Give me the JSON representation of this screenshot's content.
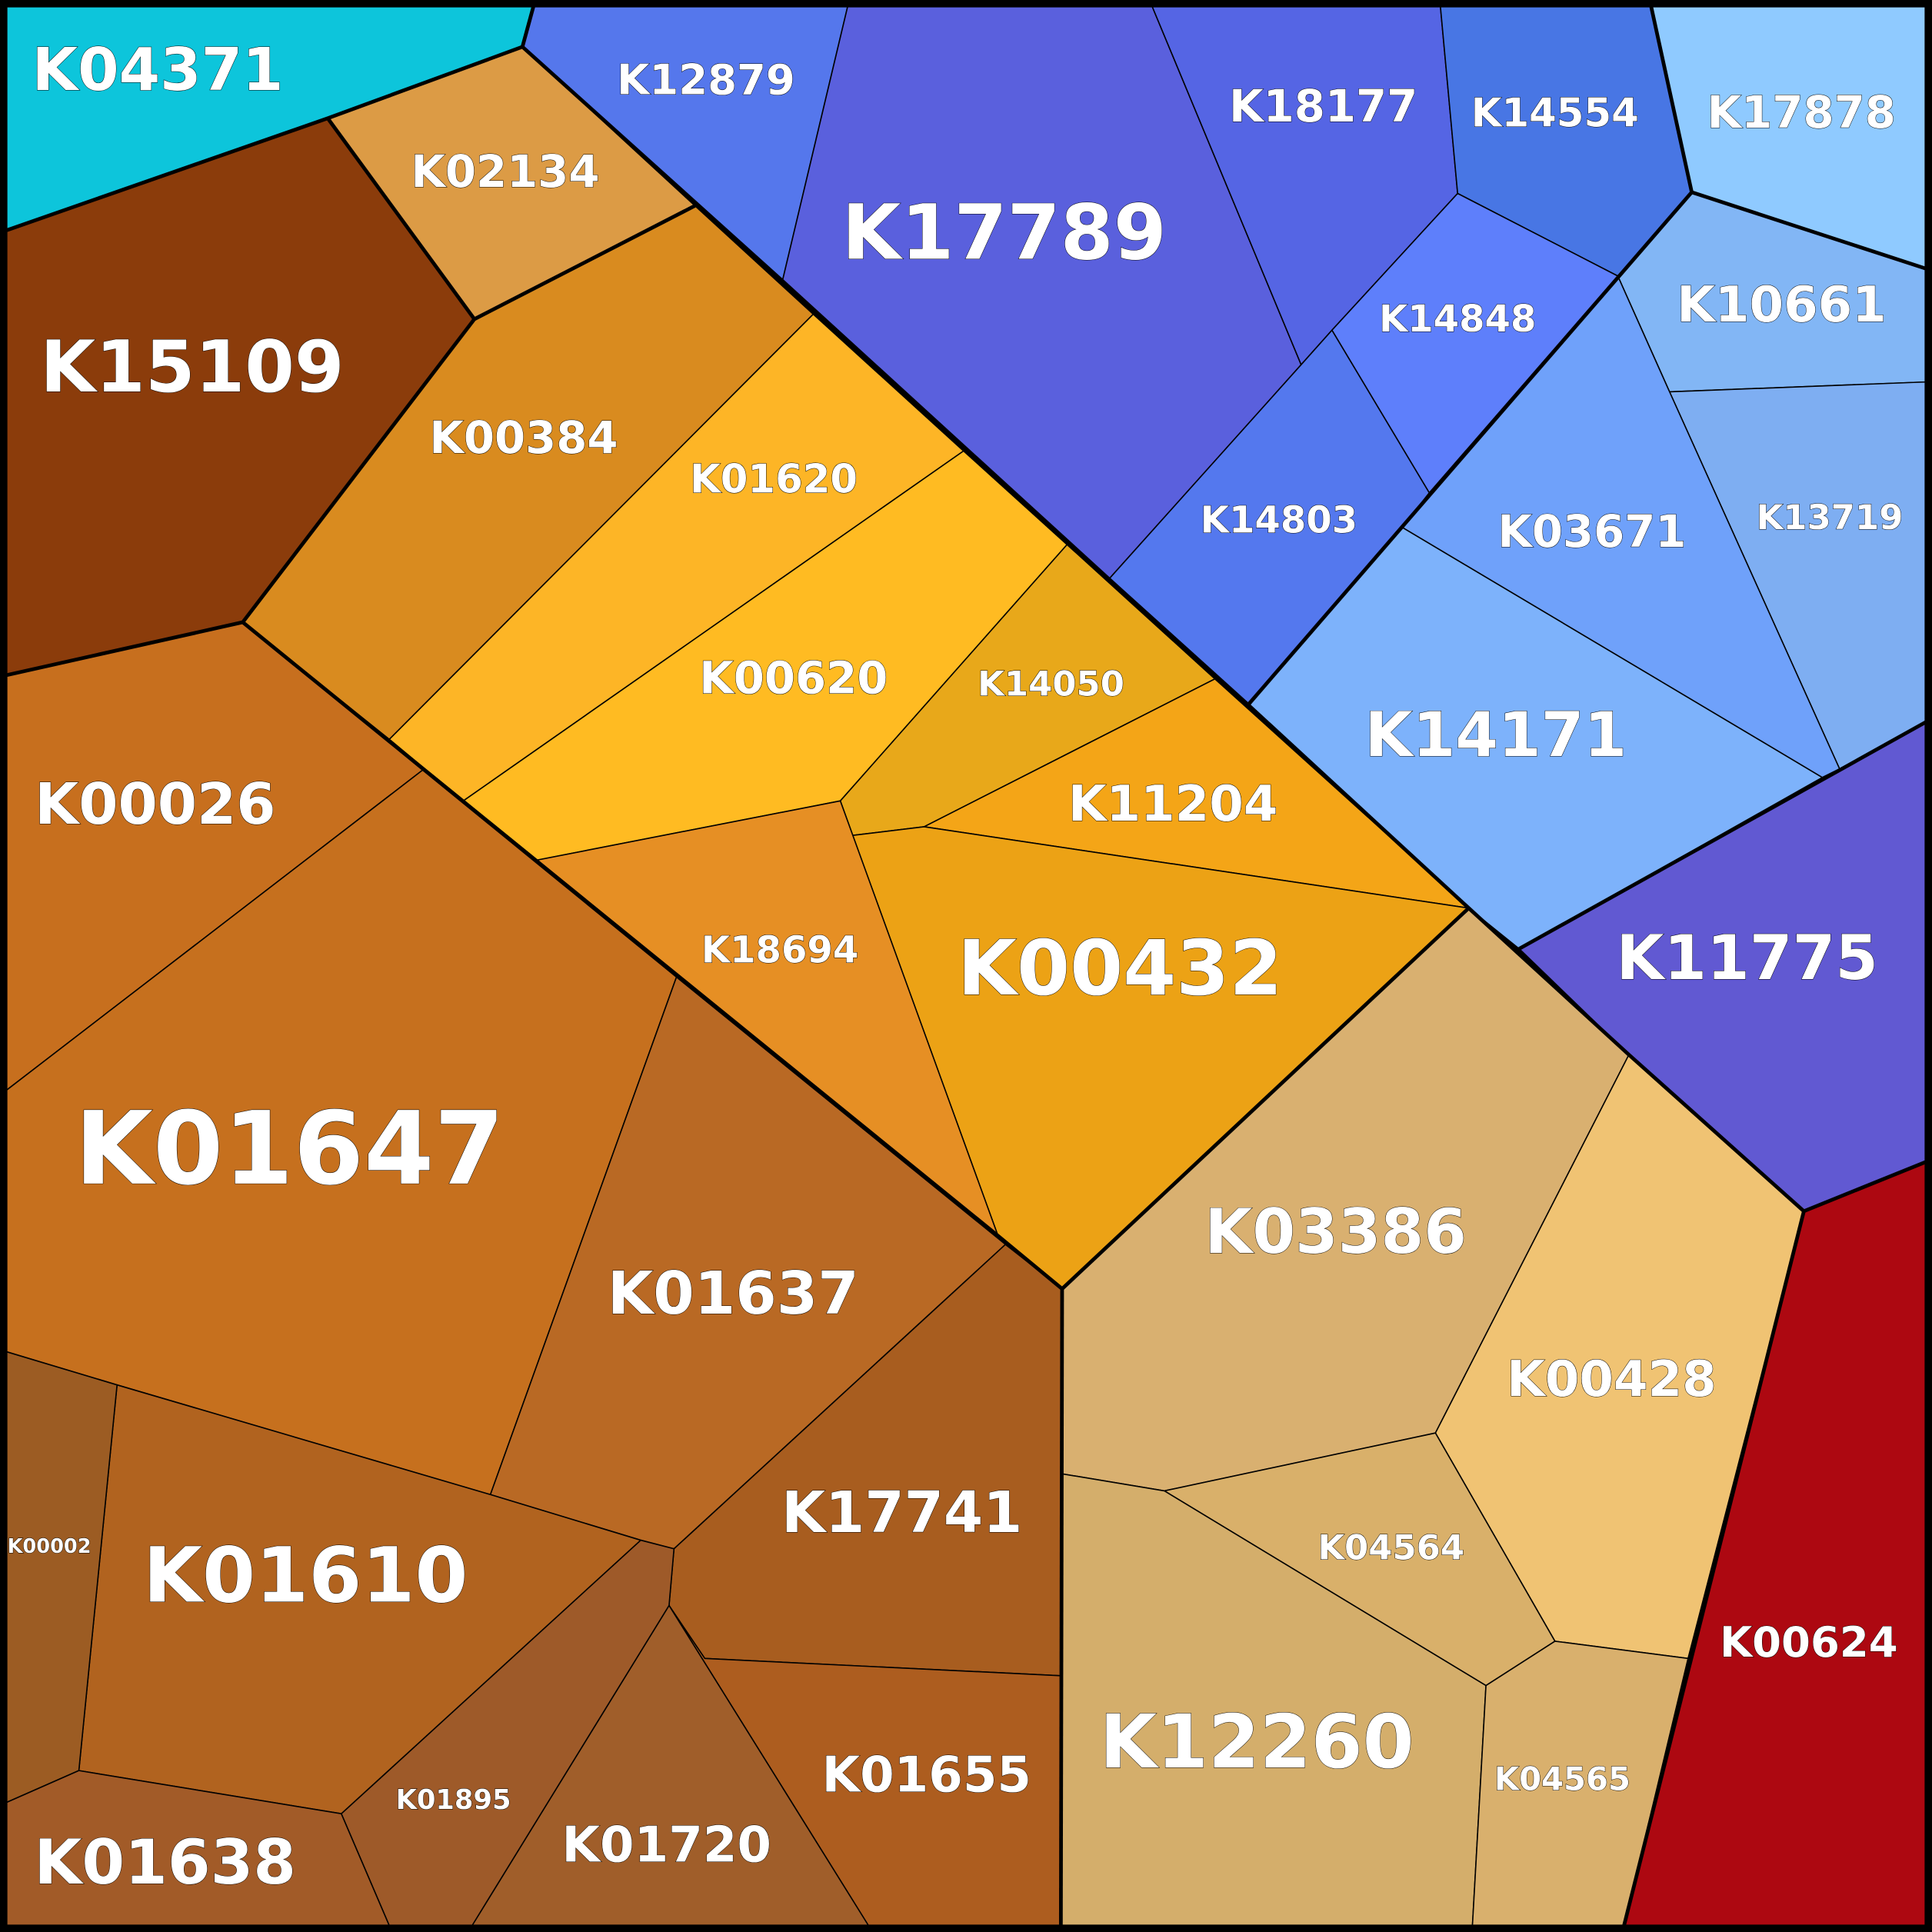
{
  "cells": [
    {
      "label": "K04371"
    },
    {
      "label": "K02134"
    },
    {
      "label": "K15109"
    },
    {
      "label": "K00384"
    },
    {
      "label": "K01620"
    },
    {
      "label": "K00620"
    },
    {
      "label": "K14050"
    },
    {
      "label": "K11204"
    },
    {
      "label": "K00432"
    },
    {
      "label": "K18694"
    },
    {
      "label": "K00026"
    },
    {
      "label": "K01647"
    },
    {
      "label": "K01637"
    },
    {
      "label": "K17741"
    },
    {
      "label": "K01655"
    },
    {
      "label": "K01720"
    },
    {
      "label": "K01895"
    },
    {
      "label": "K01610"
    },
    {
      "label": "K00002"
    },
    {
      "label": "K01638"
    },
    {
      "label": "K12879"
    },
    {
      "label": "K17789"
    },
    {
      "label": "K18177"
    },
    {
      "label": "K14554"
    },
    {
      "label": "K17878"
    },
    {
      "label": "K14848"
    },
    {
      "label": "K14803"
    },
    {
      "label": "K10661"
    },
    {
      "label": "K13719"
    },
    {
      "label": "K03671"
    },
    {
      "label": "K14171"
    },
    {
      "label": "K11775"
    },
    {
      "label": "K03386"
    },
    {
      "label": "K00428"
    },
    {
      "label": "K04564"
    },
    {
      "label": "K12260"
    },
    {
      "label": "K04565"
    },
    {
      "label": "K00624"
    }
  ]
}
